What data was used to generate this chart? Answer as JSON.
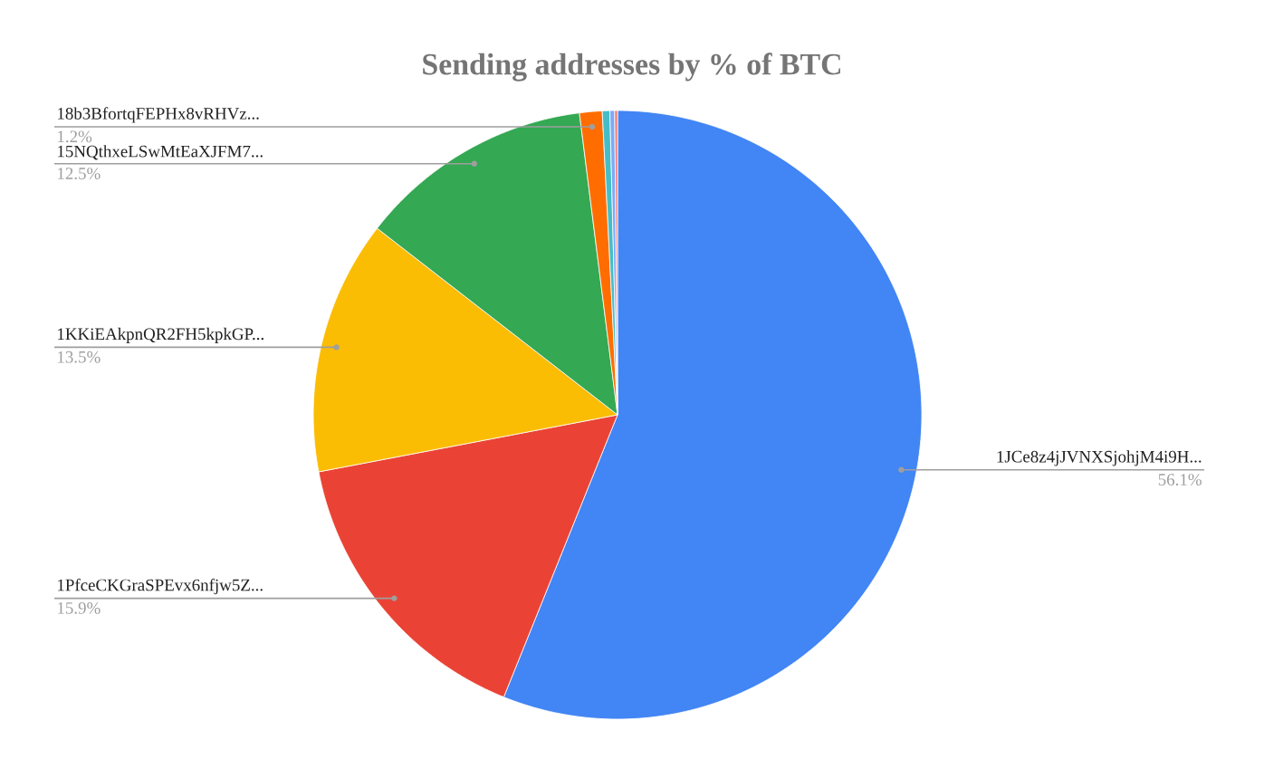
{
  "chart_data": {
    "type": "pie",
    "title": "Sending addresses by % of BTC",
    "categories": [
      "1JCe8z4jJVNXSjohjM4i9H...",
      "1PfceCKGraSPEvx6nfjw5Z...",
      "1KKiEAkpnQR2FH5kpkGP...",
      "15NQthxeLSwMtEaXJFM7...",
      "18b3BfortqFEPHx8vRHVz...",
      null,
      null,
      null
    ],
    "values": [
      56.1,
      15.9,
      13.5,
      12.5,
      1.2,
      0.4,
      0.25,
      0.15
    ],
    "value_labels": [
      "56.1%",
      "15.9%",
      "13.5%",
      "12.5%",
      "1.2%",
      null,
      null,
      null
    ],
    "colors": [
      "#4285f4",
      "#ea4335",
      "#fbbc04",
      "#34a853",
      "#ff6d01",
      "#46bdc6",
      "#7baaf7",
      "#f07b72"
    ]
  }
}
